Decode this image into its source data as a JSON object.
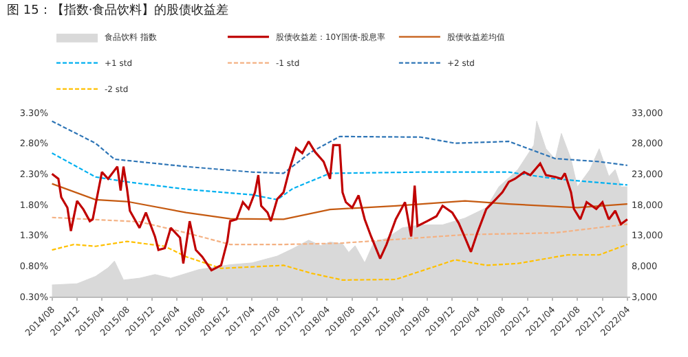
{
  "chart_data": {
    "type": "line",
    "title": "图 15：【指数·食品饮料】的股债收益差",
    "legend": "top",
    "grid": false,
    "line_style": "solid",
    "xlim": [
      "2014-07-20",
      "2022-04-15"
    ],
    "xticks": [
      {
        "value": "2014-08-01",
        "label": "2014/08"
      },
      {
        "value": "2014-12-01",
        "label": "2014/12"
      },
      {
        "value": "2015-04-01",
        "label": "2015/04"
      },
      {
        "value": "2015-08-01",
        "label": "2015/08"
      },
      {
        "value": "2015-12-01",
        "label": "2015/12"
      },
      {
        "value": "2016-04-01",
        "label": "2016/04"
      },
      {
        "value": "2016-08-01",
        "label": "2016/08"
      },
      {
        "value": "2016-12-01",
        "label": "2016/12"
      },
      {
        "value": "2017-04-01",
        "label": "2017/04"
      },
      {
        "value": "2017-08-01",
        "label": "2017/08"
      },
      {
        "value": "2017-12-01",
        "label": "2017/12"
      },
      {
        "value": "2018-04-01",
        "label": "2018/04"
      },
      {
        "value": "2018-08-01",
        "label": "2018/08"
      },
      {
        "value": "2018-12-01",
        "label": "2018/12"
      },
      {
        "value": "2019-04-01",
        "label": "2019/04"
      },
      {
        "value": "2019-08-01",
        "label": "2019/08"
      },
      {
        "value": "2019-12-01",
        "label": "2019/12"
      },
      {
        "value": "2020-04-01",
        "label": "2020/04"
      },
      {
        "value": "2020-08-01",
        "label": "2020/08"
      },
      {
        "value": "2020-12-01",
        "label": "2020/12"
      },
      {
        "value": "2021-04-01",
        "label": "2021/04"
      },
      {
        "value": "2021-08-01",
        "label": "2021/08"
      },
      {
        "value": "2021-12-01",
        "label": "2021/12"
      },
      {
        "value": "2022-04-01",
        "label": "2022/04"
      }
    ],
    "ylim": [
      0.3,
      3.3
    ],
    "yticks": [
      {
        "value": 0.3,
        "label": "0.30%"
      },
      {
        "value": 0.8,
        "label": "0.80%"
      },
      {
        "value": 1.3,
        "label": "1.30%"
      },
      {
        "value": 1.8,
        "label": "1.80%"
      },
      {
        "value": 2.3,
        "label": "2.30%"
      },
      {
        "value": 2.8,
        "label": "2.80%"
      },
      {
        "value": 3.3,
        "label": "3.30%"
      }
    ],
    "y2lim": [
      3000,
      33000
    ],
    "y2ticks": [
      {
        "value": 3000,
        "label": "3,000"
      },
      {
        "value": 8000,
        "label": "8,000"
      },
      {
        "value": 13000,
        "label": "13,000"
      },
      {
        "value": 18000,
        "label": "18,000"
      },
      {
        "value": 23000,
        "label": "23,000"
      },
      {
        "value": 28000,
        "label": "28,000"
      },
      {
        "value": 33000,
        "label": "33,000"
      }
    ],
    "series": [
      {
        "name": "食品饮料 指数",
        "type": "area",
        "axis": "y2",
        "color": "#d9d9d9",
        "x": [
          "2014-08-01",
          "2014-12-01",
          "2015-03-01",
          "2015-05-01",
          "2015-06-01",
          "2015-07-15",
          "2015-10-01",
          "2015-12-15",
          "2016-03-01",
          "2016-07-15",
          "2016-12-15",
          "2017-04-01",
          "2017-08-01",
          "2017-10-15",
          "2018-01-01",
          "2018-03-01",
          "2018-04-15",
          "2018-06-15",
          "2018-07-15",
          "2018-08-15",
          "2018-10-01",
          "2018-11-15",
          "2019-01-15",
          "2019-04-01",
          "2019-07-01",
          "2019-10-15",
          "2020-02-01",
          "2020-05-15",
          "2020-07-15",
          "2020-10-15",
          "2021-01-01",
          "2021-01-15",
          "2021-03-01",
          "2021-04-15",
          "2021-05-15",
          "2021-07-01",
          "2021-08-01",
          "2021-10-01",
          "2021-11-15",
          "2022-01-01",
          "2022-02-01",
          "2022-03-01",
          "2022-04-01"
        ],
        "values": [
          4900,
          5100,
          6300,
          7700,
          8800,
          5700,
          6000,
          6600,
          6000,
          7400,
          8200,
          8500,
          9600,
          10800,
          12200,
          11300,
          11900,
          11600,
          10200,
          11300,
          8500,
          11900,
          12500,
          14200,
          14700,
          14700,
          15800,
          17500,
          20900,
          23700,
          27700,
          31600,
          27100,
          25400,
          29600,
          25400,
          20900,
          23700,
          27100,
          22600,
          23700,
          20900,
          20900
        ]
      },
      {
        "name": "股债收益差：10Y国债-股息率",
        "color": "#c00000",
        "x": [
          "2014-08-01",
          "2014-09-01",
          "2014-09-15",
          "2014-10-15",
          "2014-11-01",
          "2014-12-01",
          "2015-01-01",
          "2015-02-01",
          "2015-02-15",
          "2015-04-01",
          "2015-05-01",
          "2015-06-15",
          "2015-07-01",
          "2015-07-15",
          "2015-08-01",
          "2015-08-15",
          "2015-10-01",
          "2015-11-01",
          "2015-12-15",
          "2016-01-01",
          "2016-02-01",
          "2016-03-01",
          "2016-04-15",
          "2016-05-01",
          "2016-06-01",
          "2016-07-01",
          "2016-08-01",
          "2016-09-15",
          "2016-11-01",
          "2016-12-01",
          "2016-12-15",
          "2017-01-15",
          "2017-02-15",
          "2017-03-15",
          "2017-04-15",
          "2017-05-01",
          "2017-05-15",
          "2017-06-15",
          "2017-07-01",
          "2017-08-01",
          "2017-09-01",
          "2017-10-01",
          "2017-11-01",
          "2017-12-01",
          "2018-01-01",
          "2018-02-01",
          "2018-03-15",
          "2018-04-15",
          "2018-05-01",
          "2018-06-01",
          "2018-06-15",
          "2018-07-01",
          "2018-08-01",
          "2018-09-01",
          "2018-10-01",
          "2018-11-01",
          "2018-12-15",
          "2019-01-15",
          "2019-03-01",
          "2019-04-15",
          "2019-05-15",
          "2019-06-01",
          "2019-06-15",
          "2019-08-01",
          "2019-09-15",
          "2019-10-15",
          "2019-12-01",
          "2020-01-01",
          "2020-02-01",
          "2020-03-01",
          "2020-04-01",
          "2020-05-15",
          "2020-07-01",
          "2020-08-01",
          "2020-09-01",
          "2020-10-01",
          "2020-11-15",
          "2020-12-15",
          "2021-02-01",
          "2021-03-01",
          "2021-04-15",
          "2021-05-15",
          "2021-06-01",
          "2021-07-01",
          "2021-07-15",
          "2021-08-15",
          "2021-09-15",
          "2021-11-01",
          "2021-12-01",
          "2022-01-01",
          "2022-02-01",
          "2022-03-01",
          "2022-04-01"
        ],
        "values": [
          2.3,
          2.22,
          1.92,
          1.75,
          1.37,
          1.86,
          1.72,
          1.53,
          1.56,
          2.33,
          2.22,
          2.42,
          2.03,
          2.42,
          2.06,
          1.7,
          1.42,
          1.67,
          1.28,
          1.06,
          1.09,
          1.42,
          1.26,
          0.84,
          1.53,
          1.06,
          0.95,
          0.73,
          0.81,
          1.2,
          1.53,
          1.56,
          1.84,
          1.73,
          2.0,
          2.28,
          1.78,
          1.67,
          1.53,
          1.89,
          2.0,
          2.39,
          2.72,
          2.64,
          2.83,
          2.66,
          2.5,
          2.22,
          2.77,
          2.77,
          2.0,
          1.84,
          1.75,
          1.95,
          1.56,
          1.28,
          0.92,
          1.15,
          1.56,
          1.84,
          1.28,
          2.11,
          1.45,
          1.53,
          1.61,
          1.78,
          1.67,
          1.5,
          1.26,
          1.03,
          1.34,
          1.73,
          1.89,
          2.0,
          2.17,
          2.22,
          2.33,
          2.28,
          2.47,
          2.28,
          2.25,
          2.22,
          2.31,
          2.0,
          1.73,
          1.56,
          1.84,
          1.73,
          1.84,
          1.56,
          1.7,
          1.48,
          1.56
        ]
      },
      {
        "name": "股债收益差均值",
        "color": "#c55a11",
        "x": [
          "2014-08-01",
          "2015-03-01",
          "2015-08-01",
          "2016-05-15",
          "2016-12-15",
          "2017-09-01",
          "2018-04-15",
          "2019-03-01",
          "2020-02-01",
          "2020-09-01",
          "2021-08-01",
          "2022-04-01"
        ],
        "values": [
          2.14,
          1.88,
          1.85,
          1.67,
          1.57,
          1.56,
          1.72,
          1.78,
          1.86,
          1.81,
          1.75,
          1.81
        ]
      },
      {
        "name": "+1 std",
        "line_style": "dashed",
        "color": "#00b0f0",
        "x": [
          "2014-08-01",
          "2015-03-01",
          "2015-08-01",
          "2016-05-15",
          "2017-04-01",
          "2017-08-01",
          "2017-10-15",
          "2018-04-15",
          "2019-07-01",
          "2020-09-01",
          "2021-04-15",
          "2022-04-01"
        ],
        "values": [
          2.64,
          2.25,
          2.17,
          2.05,
          1.96,
          1.88,
          2.06,
          2.31,
          2.33,
          2.33,
          2.22,
          2.12
        ]
      },
      {
        "name": "-1 std",
        "line_style": "dashed",
        "color": "#f4b183",
        "x": [
          "2014-08-01",
          "2015-10-01",
          "2016-05-15",
          "2016-12-15",
          "2017-09-01",
          "2018-06-01",
          "2019-07-01",
          "2020-02-01",
          "2021-04-15",
          "2022-04-01"
        ],
        "values": [
          1.59,
          1.52,
          1.34,
          1.15,
          1.15,
          1.17,
          1.26,
          1.31,
          1.34,
          1.48
        ]
      },
      {
        "name": "+2 std",
        "line_style": "dashed",
        "color": "#2e75b6",
        "x": [
          "2014-08-01",
          "2015-03-01",
          "2015-06-01",
          "2016-05-15",
          "2017-04-01",
          "2017-09-01",
          "2018-01-15",
          "2018-06-01",
          "2019-07-01",
          "2019-12-15",
          "2020-09-01",
          "2021-04-15",
          "2021-11-15",
          "2022-04-01"
        ],
        "values": [
          3.16,
          2.8,
          2.54,
          2.42,
          2.33,
          2.31,
          2.66,
          2.91,
          2.9,
          2.8,
          2.83,
          2.55,
          2.5,
          2.44
        ]
      },
      {
        "name": "-2 std",
        "line_style": "dashed",
        "color": "#ffc000",
        "x": [
          "2014-08-01",
          "2014-11-15",
          "2015-03-01",
          "2015-08-01",
          "2016-02-01",
          "2016-05-15",
          "2016-11-01",
          "2017-09-01",
          "2018-01-15",
          "2018-06-15",
          "2019-03-01",
          "2019-12-15",
          "2020-05-15",
          "2020-10-15",
          "2021-06-15",
          "2021-11-15",
          "2022-04-01"
        ],
        "values": [
          1.06,
          1.15,
          1.12,
          1.2,
          1.12,
          0.95,
          0.76,
          0.81,
          0.68,
          0.57,
          0.58,
          0.9,
          0.81,
          0.84,
          0.98,
          0.98,
          1.15
        ]
      }
    ]
  }
}
